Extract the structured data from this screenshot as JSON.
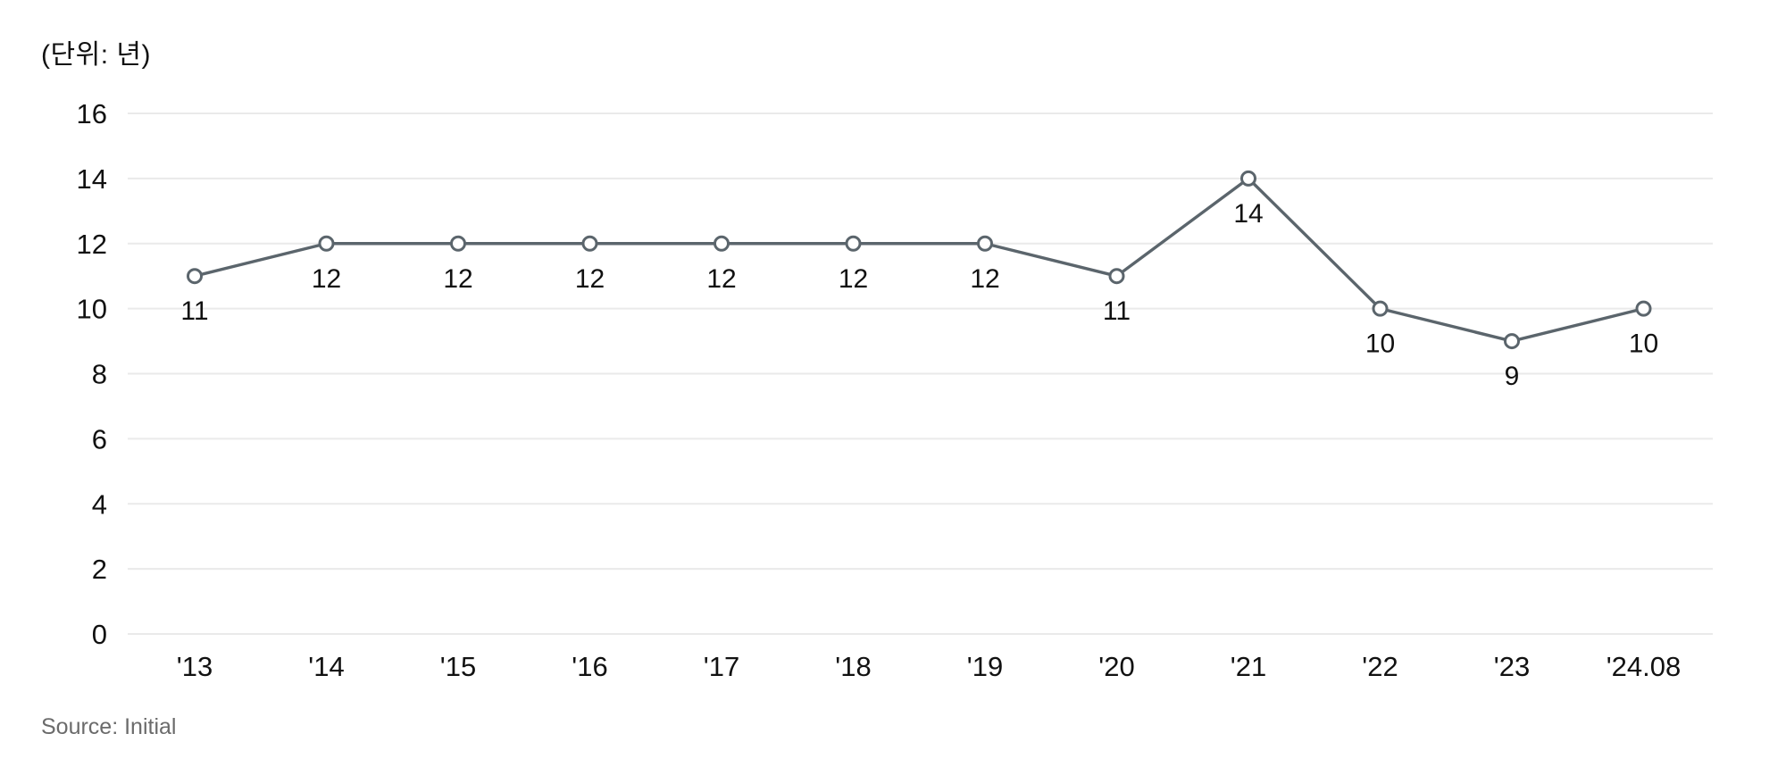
{
  "chart": {
    "unit_label": "(단위: 년)",
    "source": "Source: Initial"
  },
  "chart_data": {
    "type": "line",
    "title": "",
    "categories": [
      "'13",
      "'14",
      "'15",
      "'16",
      "'17",
      "'18",
      "'19",
      "'20",
      "'21",
      "'22",
      "'23",
      "'24.08"
    ],
    "values": [
      11,
      12,
      12,
      12,
      12,
      12,
      12,
      11,
      14,
      10,
      9,
      10
    ],
    "data_labels": [
      "11",
      "12",
      "12",
      "12",
      "12",
      "12",
      "12",
      "11",
      "14",
      "10",
      "9",
      "10"
    ],
    "xlabel": "",
    "ylabel": "(단위: 년)",
    "ylim": [
      0,
      16
    ],
    "yticks": [
      0,
      2,
      4,
      6,
      8,
      10,
      12,
      14,
      16
    ],
    "grid": "horizontal",
    "legend": "none",
    "marker": "open-circle",
    "colors": {
      "line": "#5b656c",
      "marker_stroke": "#5b656c",
      "marker_fill": "#ffffff",
      "grid": "#eaeaea",
      "tick_text": "#111111",
      "data_label_text": "#111111",
      "source_text": "#6b6b6b"
    }
  }
}
